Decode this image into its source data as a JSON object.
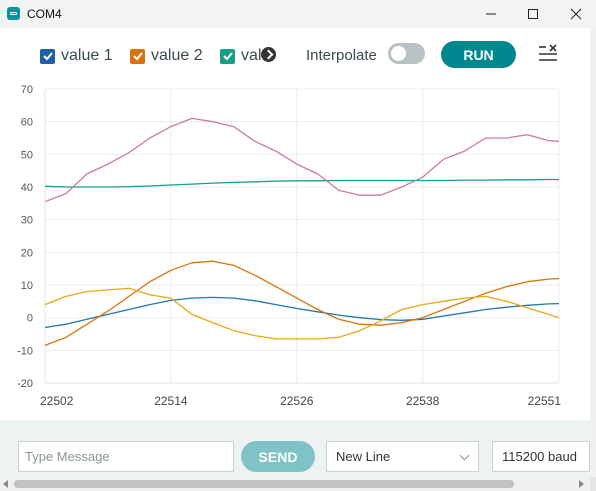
{
  "window": {
    "title": "COM4",
    "icon": "arduino-icon",
    "controls": [
      "minimize-icon",
      "maximize-icon",
      "close-icon"
    ]
  },
  "toolbar": {
    "legend": [
      {
        "label": "value 1",
        "checked": true,
        "color": "#1f77b4"
      },
      {
        "label": "value 2",
        "checked": true,
        "color": "#d9730d"
      },
      {
        "label": "val",
        "checked": true,
        "color": "#16a085"
      }
    ],
    "interpolate_label": "Interpolate",
    "interpolate_on": false,
    "run_label": "RUN",
    "clear_icon": "clear-list-icon",
    "scroll_icon": "chevron-right-icon"
  },
  "chart_data": {
    "type": "line",
    "title": "",
    "xlabel": "",
    "ylabel": "",
    "xlim": [
      22502,
      22551
    ],
    "ylim": [
      -20,
      70
    ],
    "x_ticks": [
      "22502",
      "22514",
      "22526",
      "22538",
      "22551"
    ],
    "y_ticks": [
      "70",
      "60",
      "50",
      "40",
      "30",
      "20",
      "10",
      "0",
      "-10",
      "-20"
    ],
    "x": [
      22502,
      22504,
      22506,
      22508,
      22510,
      22512,
      22514,
      22516,
      22518,
      22520,
      22522,
      22524,
      22526,
      22528,
      22530,
      22532,
      22534,
      22536,
      22538,
      22540,
      22542,
      22544,
      22546,
      22548,
      22550,
      22551
    ],
    "series": [
      {
        "name": "value 1",
        "color": "#1f77b4",
        "values": [
          -3,
          -2,
          -0.5,
          1,
          2.5,
          4,
          5.3,
          6,
          6.2,
          6,
          5.2,
          4,
          2.8,
          1.8,
          0.8,
          0,
          -0.6,
          -0.8,
          -0.5,
          0.5,
          1.5,
          2.5,
          3.2,
          3.8,
          4.2,
          4.3
        ]
      },
      {
        "name": "value 2",
        "color": "#d9730d",
        "values": [
          -8.5,
          -6,
          -2,
          2,
          6.5,
          11,
          14.5,
          16.8,
          17.3,
          16,
          13,
          9.5,
          6,
          2.5,
          -0.5,
          -2,
          -2.3,
          -1.5,
          0,
          2.5,
          5,
          7.5,
          9.5,
          11,
          11.8,
          12
        ]
      },
      {
        "name": "",
        "color": "#16a085",
        "values": [
          40.2,
          40,
          40,
          40,
          40.1,
          40.3,
          40.6,
          40.9,
          41.2,
          41.4,
          41.6,
          41.8,
          41.9,
          41.9,
          42,
          42,
          42,
          42,
          42,
          42,
          42.1,
          42.1,
          42.2,
          42.2,
          42.3,
          42.3
        ]
      },
      {
        "name": "",
        "color": "#cc79a7",
        "values": [
          35.5,
          38,
          44,
          47,
          50.5,
          55,
          58.5,
          61,
          60,
          58.5,
          54,
          51,
          47,
          44,
          39,
          37.5,
          37.5,
          40,
          43,
          48.5,
          51,
          55,
          55,
          56,
          54.2,
          54
        ]
      },
      {
        "name": "",
        "color": "#e6a817",
        "values": [
          4,
          6.5,
          8,
          8.5,
          9,
          7,
          6,
          1,
          -1.5,
          -4,
          -5.5,
          -6.5,
          -6.5,
          -6.5,
          -6,
          -4,
          -1,
          2.5,
          4,
          5,
          6,
          6.5,
          5,
          3,
          1,
          0
        ]
      }
    ]
  },
  "footer": {
    "message_placeholder": "Type Message",
    "send_label": "SEND",
    "line_ending": "New Line",
    "baud": "115200 baud"
  }
}
